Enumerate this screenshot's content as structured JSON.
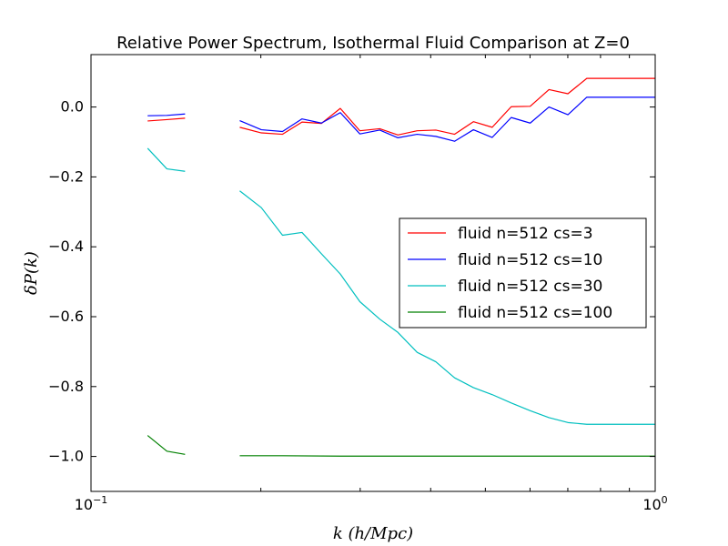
{
  "chart_data": {
    "type": "line",
    "title": "Relative Power Spectrum, Isothermal Fluid Comparison at Z=0",
    "xlabel": "k (h/Mpc)",
    "ylabel": "δP(k)",
    "x_scale": "log",
    "xlim": [
      0.1,
      1.0
    ],
    "ylim": [
      -1.1,
      0.15
    ],
    "x_ticks": [
      {
        "value": 0.1,
        "base": "10",
        "exp": "−1"
      },
      {
        "value": 1.0,
        "base": "10",
        "exp": "0"
      }
    ],
    "y_ticks": [
      {
        "value": 0.0,
        "label": "0.0"
      },
      {
        "value": -0.2,
        "label": "−0.2"
      },
      {
        "value": -0.4,
        "label": "−0.4"
      },
      {
        "value": -0.6,
        "label": "−0.6"
      },
      {
        "value": -0.8,
        "label": "−0.8"
      },
      {
        "value": -1.0,
        "label": "−1.0"
      }
    ],
    "grid": false,
    "legend_position": "center-right",
    "series": [
      {
        "name": "fluid n=512 cs=3",
        "color": "#ff0000",
        "segments": [
          {
            "x": [
              0.126,
              0.1363,
              0.1468
            ],
            "y": [
              -0.04,
              -0.036,
              -0.032
            ]
          },
          {
            "x": [
              0.1835,
              0.2004,
              0.2185,
              0.2366,
              0.2561,
              0.2766,
              0.2996,
              0.3249,
              0.3499,
              0.3785,
              0.4085,
              0.441,
              0.4762,
              0.5142,
              0.5557,
              0.6004,
              0.6483,
              0.7003,
              0.7564,
              0.8179,
              0.8837,
              0.9542,
              1.0
            ],
            "y": [
              -0.058,
              -0.074,
              -0.078,
              -0.043,
              -0.047,
              -0.004,
              -0.068,
              -0.062,
              -0.08,
              -0.068,
              -0.066,
              -0.078,
              -0.042,
              -0.058,
              0.001,
              0.002,
              0.05,
              0.038,
              0.082,
              0.082,
              0.082,
              0.082,
              0.082
            ]
          }
        ]
      },
      {
        "name": "fluid n=512 cs=10",
        "color": "#0000ff",
        "segments": [
          {
            "x": [
              0.126,
              0.1363,
              0.1468
            ],
            "y": [
              -0.025,
              -0.024,
              -0.02
            ]
          },
          {
            "x": [
              0.1835,
              0.2004,
              0.2185,
              0.2366,
              0.2561,
              0.2766,
              0.2996,
              0.3249,
              0.3499,
              0.3785,
              0.4085,
              0.441,
              0.4762,
              0.5142,
              0.5557,
              0.6004,
              0.6483,
              0.7003,
              0.7564,
              0.8179,
              0.8837,
              0.9542,
              1.0
            ],
            "y": [
              -0.039,
              -0.065,
              -0.07,
              -0.034,
              -0.046,
              -0.016,
              -0.077,
              -0.066,
              -0.088,
              -0.078,
              -0.084,
              -0.098,
              -0.065,
              -0.087,
              -0.03,
              -0.046,
              0.0,
              -0.022,
              0.028,
              0.028,
              0.028,
              0.028,
              0.028
            ]
          }
        ]
      },
      {
        "name": "fluid n=512 cs=30",
        "color": "#00bfbf",
        "segments": [
          {
            "x": [
              0.126,
              0.1363,
              0.1468
            ],
            "y": [
              -0.118,
              -0.177,
              -0.184
            ]
          },
          {
            "x": [
              0.1835,
              0.2004,
              0.2185,
              0.2366,
              0.2561,
              0.2766,
              0.2996,
              0.3249,
              0.3499,
              0.3785,
              0.4085,
              0.441,
              0.4762,
              0.5142,
              0.5557,
              0.6004,
              0.6483,
              0.7003,
              0.7564,
              0.8179,
              0.8837,
              0.9542,
              1.0
            ],
            "y": [
              -0.24,
              -0.288,
              -0.367,
              -0.359,
              -0.42,
              -0.478,
              -0.557,
              -0.607,
              -0.645,
              -0.702,
              -0.729,
              -0.775,
              -0.803,
              -0.823,
              -0.847,
              -0.869,
              -0.889,
              -0.903,
              -0.908,
              -0.908,
              -0.908,
              -0.908,
              -0.908
            ]
          }
        ]
      },
      {
        "name": "fluid n=512 cs=100",
        "color": "#008000",
        "segments": [
          {
            "x": [
              0.126,
              0.1363,
              0.1468
            ],
            "y": [
              -0.94,
              -0.985,
              -0.994
            ]
          },
          {
            "x": [
              0.1835,
              0.2185,
              0.2766,
              0.3499,
              0.441,
              0.5557,
              0.7003,
              0.8837,
              1.0
            ],
            "y": [
              -0.998,
              -0.998,
              -0.999,
              -0.999,
              -0.999,
              -0.999,
              -0.999,
              -0.999,
              -0.999
            ]
          }
        ]
      }
    ]
  }
}
